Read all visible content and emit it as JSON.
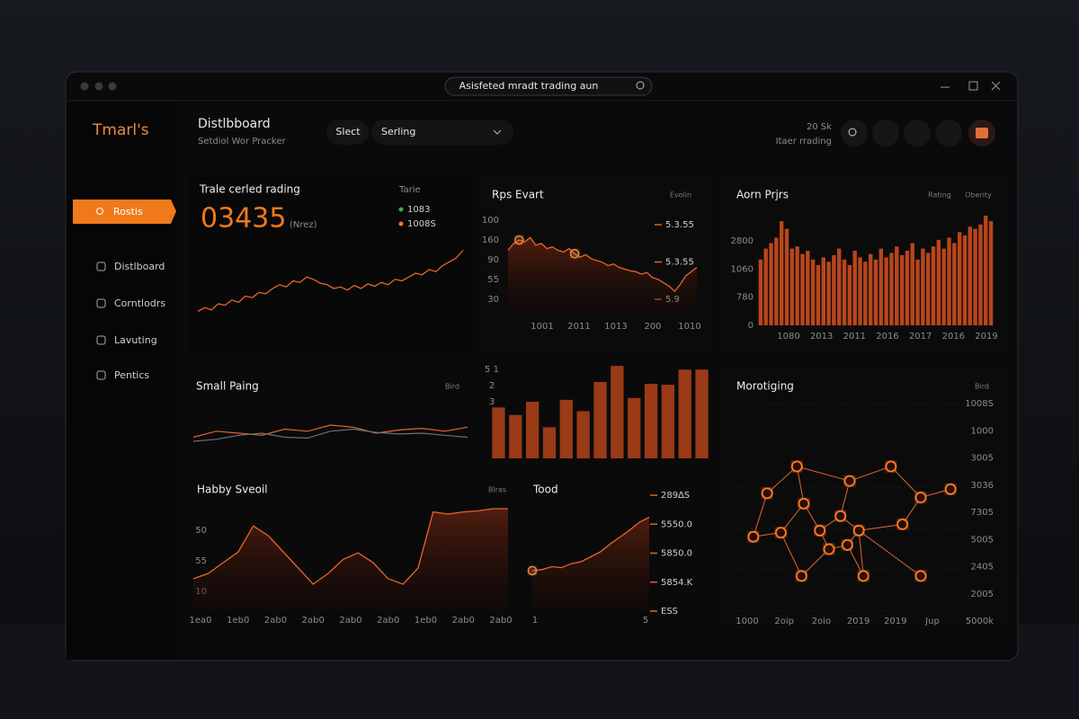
{
  "window": {
    "address": "Asisfeted mradt trading aun"
  },
  "sidebar": {
    "logo": "Tmarl's",
    "active": "Rostis",
    "items": [
      "Distlboard",
      "Corntlodrs",
      "Lavuting",
      "Pentics"
    ]
  },
  "header": {
    "title": "Distlbboard",
    "subtitle": "Setdiol Wor Pracker",
    "filter": "Slect",
    "select": "Serling",
    "stat": "20 Sk",
    "stat_label": "Itaer rrading"
  },
  "chart_data": [
    {
      "type": "line",
      "title": "Trale cerled rading",
      "big_value": "03435",
      "unit": "(Nrez)",
      "legend_title": "Tarie",
      "legend": [
        {
          "label": "1083",
          "color": "#2bb24c"
        },
        {
          "label": "1008S",
          "color": "#f07a1a"
        }
      ],
      "color": "#e8642a",
      "ylim": [
        0,
        100
      ],
      "values": [
        10,
        15,
        12,
        20,
        18,
        25,
        22,
        30,
        28,
        35,
        33,
        40,
        45,
        42,
        50,
        48,
        55,
        52,
        47,
        45,
        40,
        42,
        38,
        44,
        40,
        46,
        43,
        48,
        45,
        52,
        50,
        55,
        60,
        58,
        65,
        62,
        70,
        75,
        80,
        90
      ]
    },
    {
      "type": "area",
      "title": "Rps Evart",
      "badge": "Evolin",
      "color": "#e8642a",
      "ylim": [
        0,
        100
      ],
      "ylabels": [
        "100",
        "160",
        "90",
        "55",
        "30"
      ],
      "xlabels": [
        "1001",
        "2011",
        "1013",
        "200",
        "1010"
      ],
      "right_labels": [
        "5.3.55",
        "5.3.55",
        "5.9"
      ],
      "values": [
        70,
        78,
        82,
        80,
        85,
        76,
        78,
        72,
        74,
        70,
        68,
        72,
        66,
        62,
        65,
        60,
        58,
        56,
        52,
        54,
        50,
        48,
        46,
        45,
        42,
        44,
        38,
        36,
        32,
        28,
        22,
        30,
        40,
        45,
        50
      ]
    },
    {
      "type": "bar",
      "title": "Aorn Prjrs",
      "badges": [
        "Rating",
        "Oberity"
      ],
      "color": "#b8461c",
      "ylim": [
        0,
        100
      ],
      "ylabels": [
        "2800",
        "1060",
        "780",
        "0"
      ],
      "xlabels": [
        "1080",
        "2013",
        "2011",
        "2016",
        "2017",
        "2016",
        "2019"
      ],
      "values": [
        60,
        70,
        75,
        80,
        95,
        88,
        70,
        72,
        65,
        68,
        60,
        55,
        62,
        58,
        64,
        70,
        60,
        55,
        68,
        62,
        58,
        65,
        60,
        70,
        62,
        66,
        72,
        64,
        68,
        75,
        60,
        70,
        66,
        72,
        78,
        70,
        80,
        75,
        85,
        82,
        90,
        88,
        92,
        100,
        95
      ]
    },
    {
      "type": "multiline",
      "title": "Small Paing",
      "badge": "Bird",
      "ylim": [
        0,
        100
      ],
      "series": [
        {
          "color": "#e8642a",
          "values": [
            30,
            45,
            40,
            35,
            50,
            45,
            60,
            55,
            40,
            48,
            52,
            45,
            55
          ]
        },
        {
          "color": "#6c6f78",
          "values": [
            20,
            25,
            35,
            40,
            30,
            28,
            45,
            50,
            42,
            38,
            40,
            35,
            30
          ]
        }
      ]
    },
    {
      "type": "bar",
      "color": "#9a3a16",
      "ylim": [
        0,
        100
      ],
      "ylabels": [
        "5 1",
        "2",
        "3"
      ],
      "values": [
        54,
        46,
        60,
        33,
        62,
        50,
        81,
        98,
        64,
        79,
        78,
        94,
        94
      ]
    },
    {
      "type": "network",
      "title": "Morotiging",
      "badge": "Bird",
      "color": "#f07a1a",
      "xlim": [
        0,
        100
      ],
      "ylim": [
        0,
        100
      ],
      "ylabels": [
        "1008S",
        "1000",
        "3005",
        "3036",
        "7305",
        "5005",
        "2405",
        "2005",
        "5000k"
      ],
      "xlabels": [
        "1000",
        "2oip",
        "2oio",
        "2019",
        "2019",
        "Jup"
      ],
      "x": [
        26,
        67,
        13,
        49,
        80,
        93,
        7,
        19,
        29,
        45,
        36,
        53,
        72,
        40,
        48,
        28,
        55,
        80
      ],
      "y": [
        70,
        70,
        57,
        63,
        55,
        59,
        36,
        38,
        52,
        46,
        39,
        39,
        42,
        30,
        32,
        17,
        17,
        17
      ],
      "edges": [
        [
          2,
          0
        ],
        [
          0,
          3
        ],
        [
          3,
          1
        ],
        [
          1,
          4
        ],
        [
          4,
          5
        ],
        [
          2,
          6
        ],
        [
          6,
          7
        ],
        [
          7,
          8
        ],
        [
          8,
          0
        ],
        [
          8,
          10
        ],
        [
          10,
          9
        ],
        [
          9,
          11
        ],
        [
          11,
          12
        ],
        [
          12,
          4
        ],
        [
          10,
          13
        ],
        [
          13,
          14
        ],
        [
          14,
          11
        ],
        [
          13,
          15
        ],
        [
          15,
          7
        ],
        [
          14,
          16
        ],
        [
          16,
          11
        ],
        [
          11,
          17
        ],
        [
          9,
          3
        ]
      ]
    },
    {
      "type": "area",
      "title": "Habby Sveoil",
      "badge": "Blras",
      "color": "#e8642a",
      "ylim": [
        0,
        100
      ],
      "ylabels": [
        "50",
        "55",
        "10"
      ],
      "xlabels": [
        "1ea0",
        "1eb0",
        "2ab0",
        "2ab0",
        "2ab0",
        "2ab0",
        "1eb0",
        "2ab0",
        "2ab0"
      ],
      "values": [
        30,
        35,
        45,
        55,
        79,
        70,
        55,
        40,
        25,
        35,
        48,
        54,
        45,
        30,
        25,
        40,
        92,
        90,
        92,
        93,
        95,
        95
      ]
    },
    {
      "type": "area",
      "title": "Tood",
      "color": "#e8642a",
      "ylim": [
        0,
        100
      ],
      "right_labels": [
        "289∆S",
        "5550.0",
        "5850.0",
        "5854.K",
        "ESS"
      ],
      "xlabels": [
        "1",
        "5"
      ],
      "values": [
        41,
        42,
        45,
        44,
        48,
        50,
        55,
        60,
        68,
        75,
        82,
        90,
        95
      ]
    }
  ]
}
